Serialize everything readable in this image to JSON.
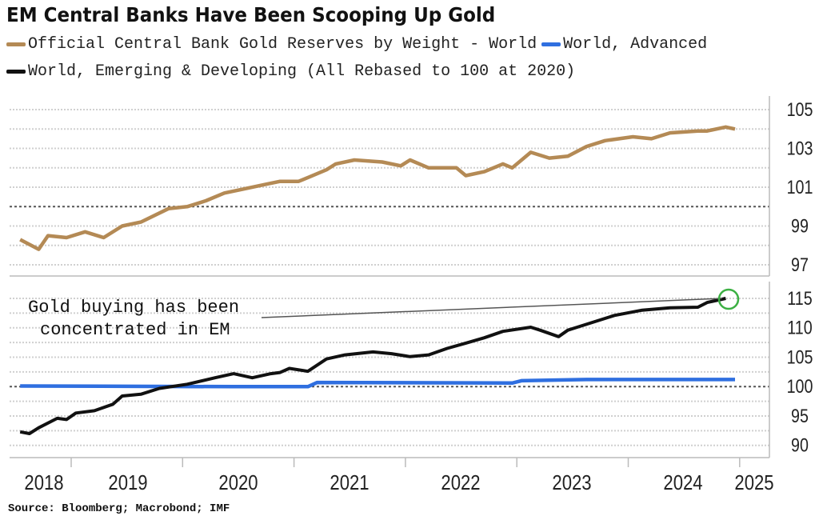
{
  "chart_data": {
    "type": "line",
    "title": "EM Central Banks Have Been Scooping Up Gold",
    "legend": [
      {
        "label": "Official Central Bank Gold Reserves by Weight - World",
        "color": "#b48a55"
      },
      {
        "label": "World, Advanced",
        "color": "#2f6fe0"
      },
      {
        "label": "World, Emerging & Developing (All Rebased to 100 at 2020)",
        "color": "#111111"
      }
    ],
    "legend_placement": "top-left",
    "x_tick_labels": [
      "2018",
      "2019",
      "2020",
      "2021",
      "2022",
      "2023",
      "2024",
      "2025"
    ],
    "source": "Source: Bloomberg; Macrobond; IMF",
    "grid": true,
    "panels": [
      {
        "ylim": [
          96.5,
          105.7
        ],
        "y_tick_labels": [
          "105",
          "103",
          "101",
          "99",
          "97"
        ],
        "reference_line": 100,
        "series": [
          {
            "name": "Official Central Bank Gold Reserves by Weight - World",
            "color": "#b48a55",
            "x": [
              "2018-07",
              "2018-09",
              "2018-10",
              "2018-12",
              "2019-02",
              "2019-04",
              "2019-06",
              "2019-08",
              "2019-11",
              "2020-01",
              "2020-03",
              "2020-05",
              "2020-07",
              "2020-10",
              "2020-11",
              "2021-01",
              "2021-02",
              "2021-04",
              "2021-05",
              "2021-07",
              "2021-10",
              "2021-12",
              "2022-01",
              "2022-03",
              "2022-06",
              "2022-07",
              "2022-09",
              "2022-11",
              "2022-12",
              "2023-02",
              "2023-04",
              "2023-06",
              "2023-08",
              "2023-10",
              "2024-01",
              "2024-03",
              "2024-05",
              "2024-08",
              "2024-09",
              "2024-11",
              "2024-12"
            ],
            "y": [
              98.3,
              97.8,
              98.5,
              98.4,
              98.7,
              98.4,
              99.0,
              99.2,
              99.9,
              100.0,
              100.3,
              100.7,
              100.9,
              101.2,
              101.3,
              101.3,
              101.5,
              101.9,
              102.2,
              102.4,
              102.3,
              102.1,
              102.4,
              102.0,
              102.0,
              101.6,
              101.8,
              102.2,
              102.0,
              102.8,
              102.5,
              102.6,
              103.1,
              103.4,
              103.6,
              103.5,
              103.8,
              103.9,
              103.9,
              104.1,
              104.0
            ]
          }
        ]
      },
      {
        "ylim": [
          88,
          117
        ],
        "y_tick_labels": [
          "115",
          "110",
          "105",
          "100",
          "95",
          "90"
        ],
        "reference_line": 100,
        "series": [
          {
            "name": "World, Advanced",
            "color": "#2f6fe0",
            "x": [
              "2018-07",
              "2020-06",
              "2021-02",
              "2021-03",
              "2022-12",
              "2023-01",
              "2023-08",
              "2024-12"
            ],
            "y": [
              100.1,
              100.0,
              100.0,
              100.7,
              100.6,
              101.0,
              101.2,
              101.2
            ]
          },
          {
            "name": "World, Emerging & Developing",
            "color": "#111111",
            "x": [
              "2018-07",
              "2018-08",
              "2018-09",
              "2018-11",
              "2018-12",
              "2019-01",
              "2019-03",
              "2019-05",
              "2019-06",
              "2019-08",
              "2019-10",
              "2020-01",
              "2020-04",
              "2020-06",
              "2020-08",
              "2020-10",
              "2020-11",
              "2020-12",
              "2021-02",
              "2021-04",
              "2021-06",
              "2021-09",
              "2021-11",
              "2022-01",
              "2022-03",
              "2022-05",
              "2022-07",
              "2022-09",
              "2022-11",
              "2023-02",
              "2023-03",
              "2023-05",
              "2023-06",
              "2023-07",
              "2023-10",
              "2023-11",
              "2024-02",
              "2024-05",
              "2024-08",
              "2024-09",
              "2024-11"
            ],
            "y": [
              92.3,
              92.0,
              93.0,
              94.6,
              94.4,
              95.5,
              95.9,
              97.0,
              98.4,
              98.7,
              99.7,
              100.4,
              101.5,
              102.2,
              101.5,
              102.2,
              102.4,
              103.1,
              102.6,
              104.7,
              105.4,
              105.9,
              105.6,
              105.1,
              105.4,
              106.5,
              107.4,
              108.3,
              109.4,
              110.1,
              109.6,
              108.5,
              109.6,
              110.1,
              111.6,
              112.1,
              113.0,
              113.4,
              113.5,
              114.3,
              115.0
            ]
          }
        ],
        "annotation": {
          "text_line1": "Gold buying has been",
          "text_line2": "concentrated in EM",
          "highlight_color": "#3cb043"
        }
      }
    ]
  }
}
